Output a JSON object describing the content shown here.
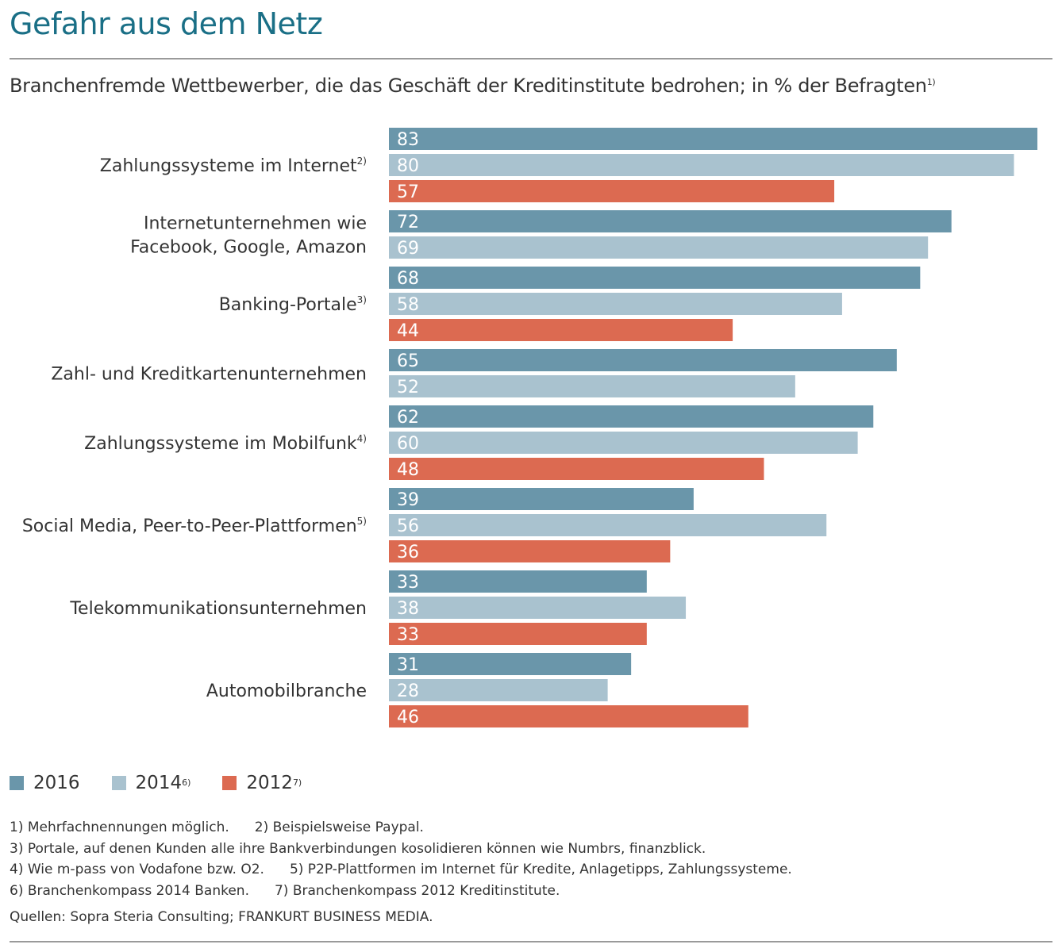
{
  "title": "Gefahr aus dem Netz",
  "subtitle": "Branchenfremde Wettbewerber, die das Geschäft der Kreditinstitute bedrohen; in % der Befragten",
  "subtitle_sup": "1)",
  "colors": {
    "s2016": "#6a96aa",
    "s2014": "#a9c2cf",
    "s2012": "#dc6a51",
    "title": "#1a6f86"
  },
  "chart_data": {
    "type": "bar",
    "orientation": "horizontal",
    "xlim": [
      0,
      83
    ],
    "categories": [
      {
        "label": "Zahlungssysteme im Internet",
        "sup": "2)"
      },
      {
        "label": "Internetunternehmen wie",
        "label2": "Facebook, Google, Amazon",
        "sup": ""
      },
      {
        "label": "Banking-Portale",
        "sup": "3)"
      },
      {
        "label": "Zahl- und Kreditkartenunternehmen",
        "sup": ""
      },
      {
        "label": "Zahlungssysteme im Mobilfunk",
        "sup": "4)"
      },
      {
        "label": "Social Media, Peer-to-Peer-Plattformen",
        "sup": "5)"
      },
      {
        "label": "Telekommunikationsunternehmen",
        "sup": ""
      },
      {
        "label": "Automobilbranche",
        "sup": ""
      }
    ],
    "series": [
      {
        "name": "2016",
        "sup": "",
        "values": [
          83,
          72,
          68,
          65,
          62,
          39,
          33,
          31
        ]
      },
      {
        "name": "2014",
        "sup": "6)",
        "values": [
          80,
          69,
          58,
          52,
          60,
          56,
          38,
          28
        ]
      },
      {
        "name": "2012",
        "sup": "7)",
        "values": [
          57,
          null,
          44,
          null,
          48,
          36,
          33,
          46
        ]
      }
    ],
    "legend_position": "bottom-left",
    "grid": false
  },
  "notes": [
    [
      "1)  Mehrfachnennungen möglich.",
      "2)  Beispielsweise Paypal."
    ],
    [
      "3)  Portale, auf denen Kunden alle ihre Bankverbindungen kosolidieren können wie Numbrs, finanzblick."
    ],
    [
      "4)  Wie m-pass von Vodafone bzw. O2.",
      "5)  P2P-Plattformen im Internet für Kredite, Anlagetipps, Zahlungssysteme."
    ],
    [
      "6)  Branchenkompass 2014 Banken.",
      "7)  Branchenkompass 2012 Kreditinstitute."
    ]
  ],
  "source": "Quellen: Sopra Steria Consulting; FRANKURT BUSINESS MEDIA."
}
